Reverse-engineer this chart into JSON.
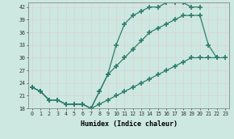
{
  "xlabel": "Humidex (Indice chaleur)",
  "bg_color": "#cce8e0",
  "grid_color": "#e8e8e8",
  "line_color": "#2e7d6e",
  "xlim": [
    -0.5,
    23.5
  ],
  "ylim": [
    18,
    43
  ],
  "xticks": [
    0,
    1,
    2,
    3,
    4,
    5,
    6,
    7,
    8,
    9,
    10,
    11,
    12,
    13,
    14,
    15,
    16,
    17,
    18,
    19,
    20,
    21,
    22,
    23
  ],
  "yticks": [
    18,
    21,
    24,
    27,
    30,
    33,
    36,
    39,
    42
  ],
  "line1_x": [
    0,
    1,
    2,
    3,
    4,
    5,
    6,
    7,
    8,
    9,
    10,
    11,
    12,
    13,
    14,
    15,
    16,
    17,
    18,
    19,
    20
  ],
  "line1_y": [
    23,
    22,
    20,
    20,
    19,
    19,
    19,
    18,
    22,
    26,
    33,
    38,
    40,
    41,
    42,
    42,
    43,
    43,
    43,
    42,
    42
  ],
  "line2_x": [
    0,
    1,
    2,
    3,
    4,
    5,
    6,
    7,
    8,
    9,
    10,
    11,
    12,
    13,
    14,
    15,
    16,
    17,
    18,
    19,
    20,
    21,
    22
  ],
  "line2_y": [
    23,
    22,
    20,
    20,
    19,
    19,
    19,
    18,
    22,
    26,
    28,
    30,
    32,
    34,
    36,
    37,
    38,
    39,
    40,
    40,
    40,
    33,
    30
  ],
  "line3_x": [
    0,
    1,
    2,
    3,
    4,
    5,
    6,
    7,
    8,
    9,
    10,
    11,
    12,
    13,
    14,
    15,
    16,
    17,
    18,
    19,
    20,
    21,
    22,
    23
  ],
  "line3_y": [
    23,
    22,
    20,
    20,
    19,
    19,
    19,
    18,
    19,
    20,
    21,
    22,
    23,
    24,
    25,
    26,
    27,
    28,
    29,
    30,
    30,
    30,
    30,
    30
  ]
}
